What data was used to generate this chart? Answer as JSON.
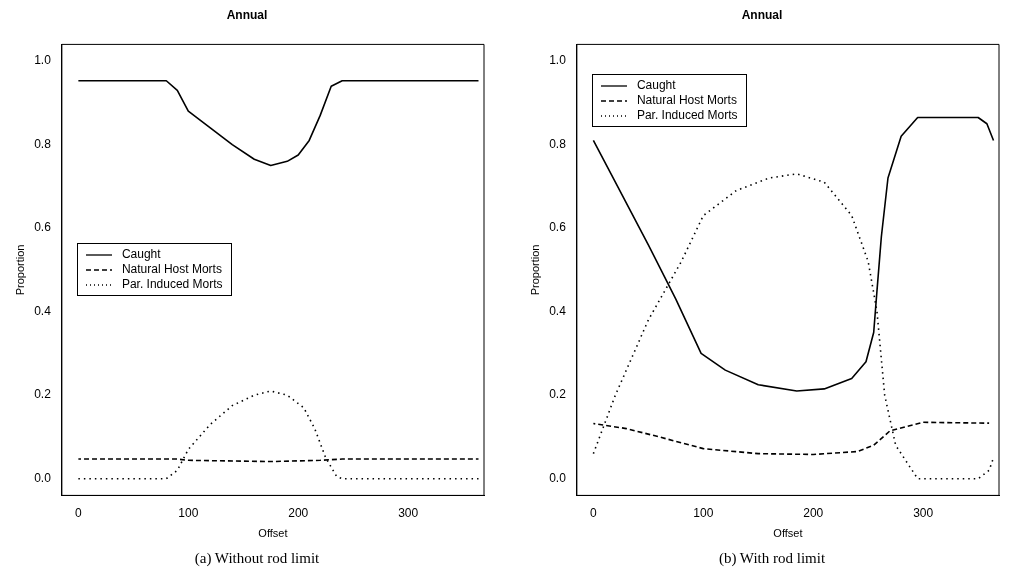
{
  "chart_data": [
    {
      "type": "line",
      "title": "Annual",
      "xlabel": "Offset",
      "ylabel": "Proportion",
      "xlim": [
        -15,
        369
      ],
      "ylim": [
        -0.04,
        1.04
      ],
      "xticks": [
        0,
        100,
        200,
        300
      ],
      "yticks": [
        {
          "value": 0,
          "label": "0.0"
        },
        {
          "value": 0.2,
          "label": "0.2"
        },
        {
          "value": 0.4,
          "label": "0.4"
        },
        {
          "value": 0.6,
          "label": "0.6"
        },
        {
          "value": 0.8,
          "label": "0.8"
        },
        {
          "value": 1,
          "label": "1.0"
        }
      ],
      "legend": "left",
      "grid": false,
      "marker": "none",
      "annotations": [
        "(a) Without rod limit"
      ],
      "series": [
        {
          "name": "Caught",
          "color": "#000000",
          "line_style": "solid",
          "x": [
            0,
            80,
            90,
            100,
            120,
            140,
            160,
            175,
            190,
            200,
            210,
            220,
            230,
            240,
            364
          ],
          "values": [
            0.953,
            0.953,
            0.93,
            0.88,
            0.84,
            0.8,
            0.765,
            0.75,
            0.76,
            0.775,
            0.81,
            0.87,
            0.94,
            0.953,
            0.953
          ]
        },
        {
          "name": "Natural Host Morts",
          "color": "#000000",
          "line_style": "dashed",
          "x": [
            0,
            90,
            100,
            175,
            220,
            240,
            364
          ],
          "values": [
            0.047,
            0.047,
            0.044,
            0.041,
            0.044,
            0.047,
            0.047
          ]
        },
        {
          "name": "Par. Induced Morts",
          "color": "#000000",
          "line_style": "dotted",
          "x": [
            0,
            80,
            90,
            100,
            120,
            140,
            160,
            175,
            190,
            205,
            215,
            225,
            235,
            240,
            364
          ],
          "values": [
            0,
            0,
            0.02,
            0.07,
            0.13,
            0.175,
            0.2,
            0.21,
            0.2,
            0.17,
            0.12,
            0.05,
            0.005,
            0,
            0
          ]
        }
      ]
    },
    {
      "type": "line",
      "title": "Annual",
      "xlabel": "Offset",
      "ylabel": "Proportion",
      "xlim": [
        -15,
        369
      ],
      "ylim": [
        -0.04,
        1.04
      ],
      "xticks": [
        0,
        100,
        200,
        300
      ],
      "yticks": [
        {
          "value": 0,
          "label": "0.0"
        },
        {
          "value": 0.2,
          "label": "0.2"
        },
        {
          "value": 0.4,
          "label": "0.4"
        },
        {
          "value": 0.6,
          "label": "0.6"
        },
        {
          "value": 0.8,
          "label": "0.8"
        },
        {
          "value": 1,
          "label": "1.0"
        }
      ],
      "legend": "top left",
      "grid": false,
      "marker": "none",
      "annotations": [
        "(b) With rod limit"
      ],
      "series": [
        {
          "name": "Caught",
          "color": "#000000",
          "line_style": "solid",
          "x": [
            0,
            20,
            50,
            75,
            98,
            120,
            150,
            185,
            210,
            235,
            248,
            255,
            258,
            262,
            268,
            280,
            295,
            350,
            358,
            364
          ],
          "values": [
            0.81,
            0.71,
            0.56,
            0.43,
            0.3,
            0.26,
            0.225,
            0.21,
            0.215,
            0.24,
            0.28,
            0.35,
            0.45,
            0.58,
            0.72,
            0.82,
            0.865,
            0.865,
            0.85,
            0.81
          ]
        },
        {
          "name": "Natural Host Morts",
          "color": "#000000",
          "line_style": "dashed",
          "x": [
            0,
            30,
            60,
            100,
            150,
            200,
            240,
            255,
            270,
            300,
            360
          ],
          "values": [
            0.132,
            0.12,
            0.1,
            0.072,
            0.06,
            0.058,
            0.065,
            0.08,
            0.115,
            0.135,
            0.133
          ]
        },
        {
          "name": "Par. Induced Morts",
          "color": "#000000",
          "line_style": "dotted",
          "x": [
            0,
            20,
            50,
            80,
            100,
            130,
            160,
            185,
            210,
            235,
            250,
            258,
            265,
            275,
            295,
            350,
            360,
            364
          ],
          "values": [
            0.06,
            0.2,
            0.38,
            0.52,
            0.63,
            0.69,
            0.72,
            0.73,
            0.71,
            0.63,
            0.52,
            0.4,
            0.2,
            0.08,
            0,
            0,
            0.02,
            0.05
          ]
        }
      ]
    }
  ]
}
